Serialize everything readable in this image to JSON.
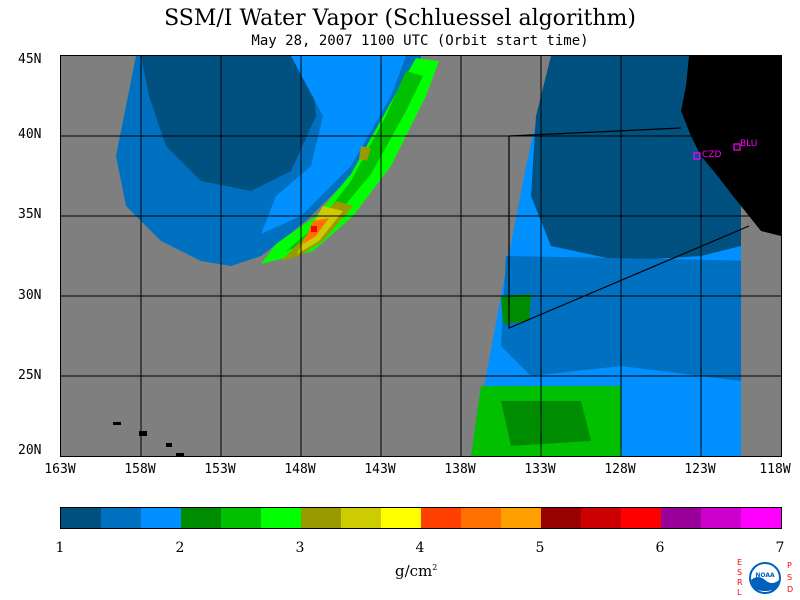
{
  "title": "SSM/I Water Vapor (Schluessel algorithm)",
  "subtitle": "May 28, 2007  1100 UTC  (Orbit start time)",
  "map": {
    "latitude_labels": [
      "45N",
      "40N",
      "35N",
      "30N",
      "25N",
      "20N"
    ],
    "longitude_labels": [
      "163W",
      "158W",
      "153W",
      "148W",
      "143W",
      "138W",
      "133W",
      "128W",
      "123W",
      "118W"
    ],
    "lat_range": [
      20,
      45
    ],
    "lon_range": [
      -163,
      -118
    ],
    "stations": [
      {
        "label": "CZD",
        "lon": -123.3,
        "lat": 38.6
      },
      {
        "label": "BLU",
        "lon": -120.7,
        "lat": 39.2
      }
    ],
    "colors": {
      "no_data": "#7f7f7f",
      "land": "#000000",
      "station": "#ff00ff"
    }
  },
  "colorbar": {
    "colors": [
      "#005080",
      "#0070c0",
      "#0090ff",
      "#008c00",
      "#00c000",
      "#00ff00",
      "#999900",
      "#cccc00",
      "#ffff00",
      "#ff4000",
      "#ff7000",
      "#ffa000",
      "#990000",
      "#cc0000",
      "#ff0000",
      "#990099",
      "#cc00cc",
      "#ff00ff"
    ],
    "tick_labels": [
      "1",
      "2",
      "3",
      "4",
      "5",
      "6",
      "7"
    ],
    "units": "g/cm",
    "units_exponent": "2"
  },
  "logo": {
    "left_letters": [
      "E",
      "S",
      "R",
      "L"
    ],
    "right_letters": [
      "P",
      "S",
      "D"
    ],
    "center_text": "NOAA"
  }
}
